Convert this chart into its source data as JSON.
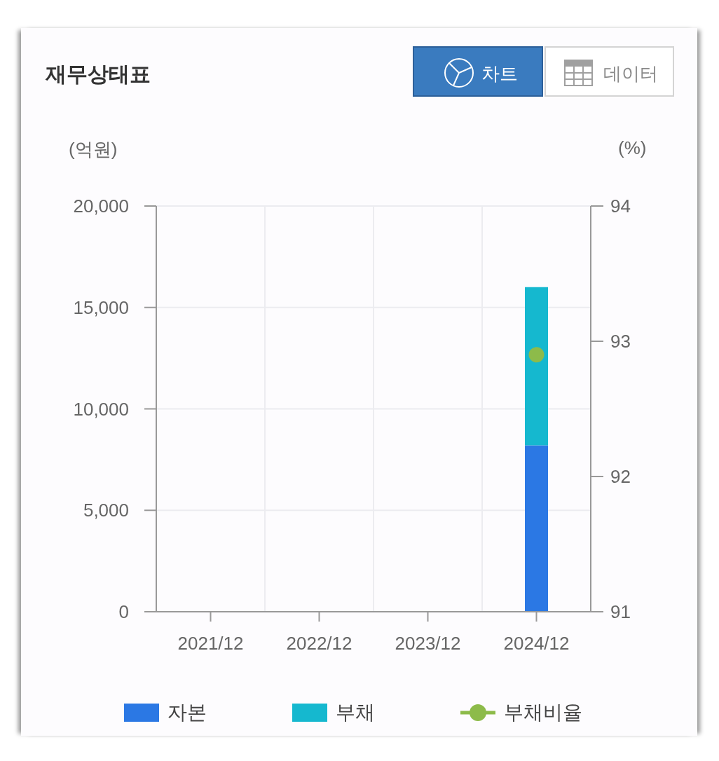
{
  "chart_data": {
    "type": "bar",
    "title": "재무상태표",
    "ylabel": "(억원)",
    "y2label": "(%)",
    "annotations": [
      "차트",
      "데이터"
    ],
    "categories": [
      "2021/12",
      "2022/12",
      "2023/12",
      "2024/12"
    ],
    "series": [
      {
        "name": "자본",
        "color": "#2b78e4",
        "values": [
          null,
          null,
          null,
          8200
        ]
      },
      {
        "name": "부채",
        "color": "#15b8cf",
        "values": [
          null,
          null,
          null,
          7800
        ]
      },
      {
        "name": "부채비율",
        "type": "line",
        "axis": "y2",
        "color": "#8dbb4a",
        "values": [
          null,
          null,
          null,
          92.9
        ]
      }
    ],
    "stacked": true,
    "ylim": [
      0,
      20000
    ],
    "yticks": [
      0,
      {
        "value": 5000,
        "label": "5,000"
      },
      {
        "value": 10000,
        "label": "10,000"
      },
      {
        "value": 15000,
        "label": "15,000"
      },
      {
        "value": 20000,
        "label": "20,000"
      }
    ],
    "y2lim": [
      91,
      94
    ],
    "y2ticks": [
      91,
      92,
      93,
      94
    ],
    "grid": true,
    "legend": "bottom",
    "marker": "circle"
  }
}
